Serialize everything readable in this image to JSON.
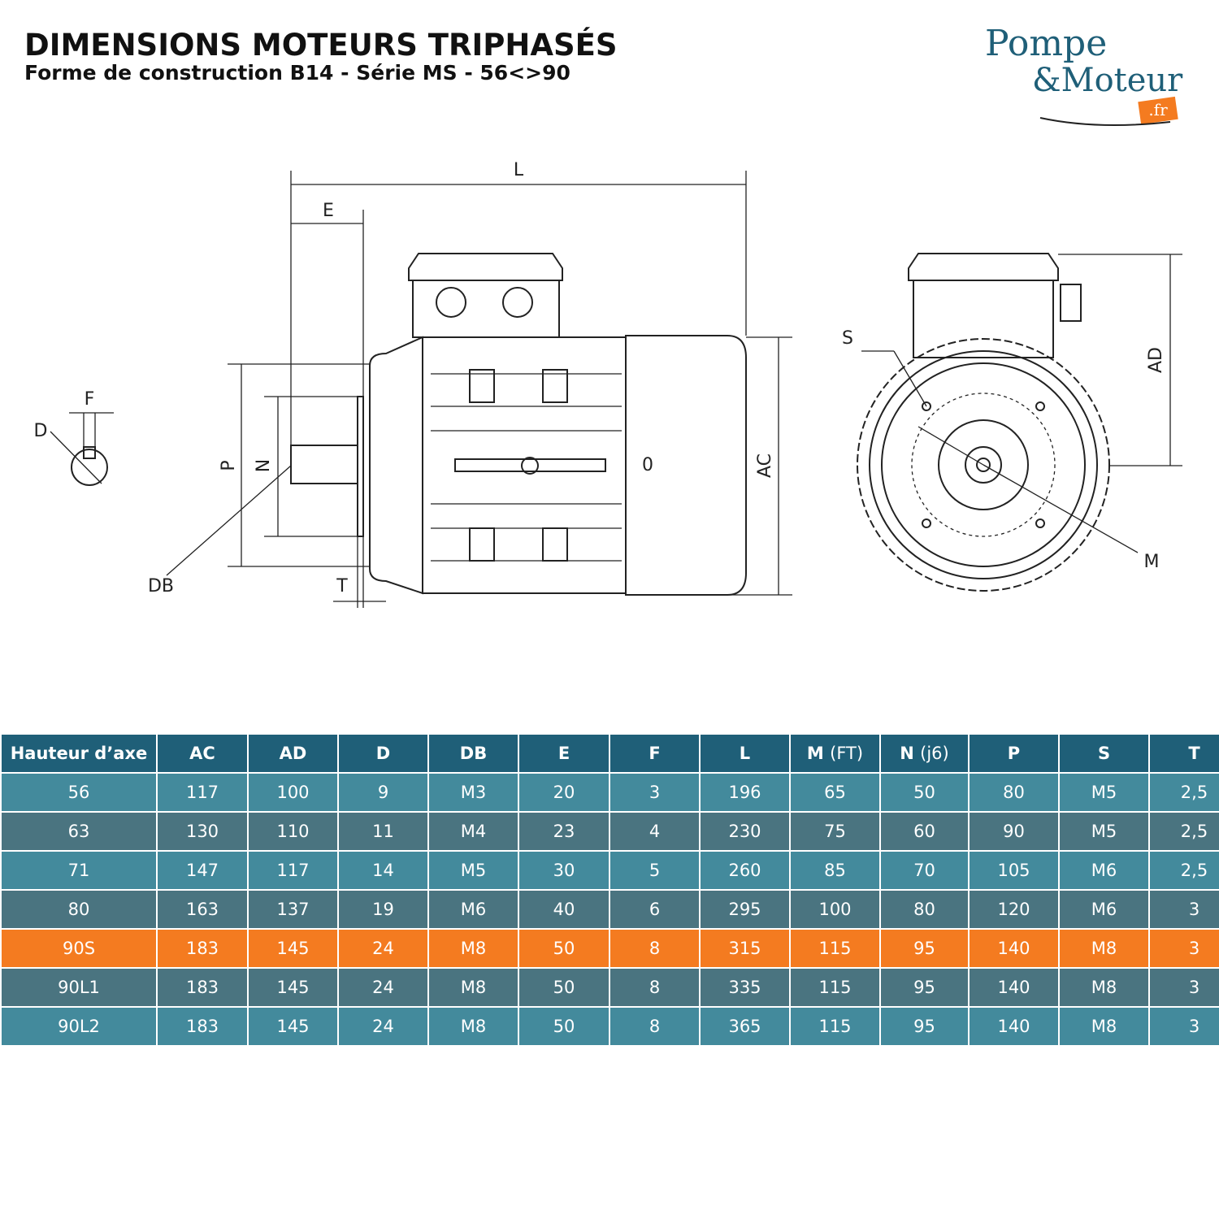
{
  "header": {
    "title": "DIMENSIONS MOTEURS TRIPHASÉS",
    "subtitle": "Forme de construction B14 - Série MS - 56<>90"
  },
  "logo": {
    "line1": "Pompe",
    "line2": "&Moteur",
    "suffix": ".fr"
  },
  "diagram": {
    "labels": {
      "L": "L",
      "E": "E",
      "F": "F",
      "D": "D",
      "P": "P",
      "N": "N",
      "DB": "DB",
      "T": "T",
      "AC": "AC",
      "O": "0",
      "S": "S",
      "AD": "AD",
      "M": "M"
    }
  },
  "table": {
    "headers": [
      {
        "label": "Hauteur d’axe"
      },
      {
        "label": "AC"
      },
      {
        "label": "AD"
      },
      {
        "label": "D"
      },
      {
        "label": "DB"
      },
      {
        "label": "E"
      },
      {
        "label": "F"
      },
      {
        "label": "L"
      },
      {
        "label": "M",
        "note": "(FT)"
      },
      {
        "label": "N",
        "note": "(j6)"
      },
      {
        "label": "P"
      },
      {
        "label": "S"
      },
      {
        "label": "T"
      }
    ],
    "rows": [
      [
        "56",
        "117",
        "100",
        "9",
        "M3",
        "20",
        "3",
        "196",
        "65",
        "50",
        "80",
        "M5",
        "2,5"
      ],
      [
        "63",
        "130",
        "110",
        "11",
        "M4",
        "23",
        "4",
        "230",
        "75",
        "60",
        "90",
        "M5",
        "2,5"
      ],
      [
        "71",
        "147",
        "117",
        "14",
        "M5",
        "30",
        "5",
        "260",
        "85",
        "70",
        "105",
        "M6",
        "2,5"
      ],
      [
        "80",
        "163",
        "137",
        "19",
        "M6",
        "40",
        "6",
        "295",
        "100",
        "80",
        "120",
        "M6",
        "3"
      ],
      [
        "90S",
        "183",
        "145",
        "24",
        "M8",
        "50",
        "8",
        "315",
        "115",
        "95",
        "140",
        "M8",
        "3"
      ],
      [
        "90L1",
        "183",
        "145",
        "24",
        "M8",
        "50",
        "8",
        "335",
        "115",
        "95",
        "140",
        "M8",
        "3"
      ],
      [
        "90L2",
        "183",
        "145",
        "24",
        "M8",
        "50",
        "8",
        "365",
        "115",
        "95",
        "140",
        "M8",
        "3"
      ]
    ],
    "highlighted_row": 4
  }
}
